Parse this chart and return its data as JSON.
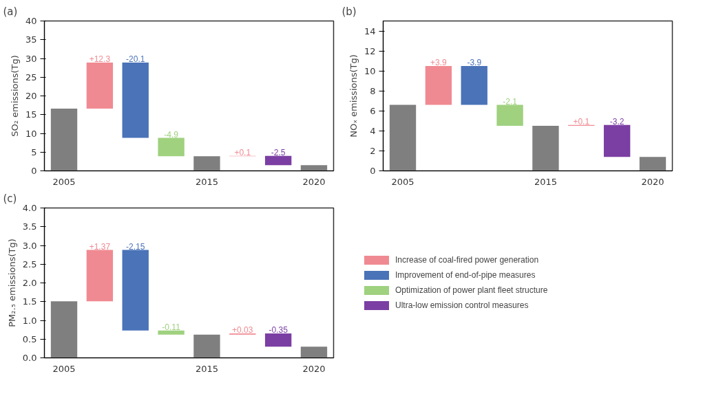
{
  "chart_data": [
    {
      "type": "bar",
      "title": "(a)",
      "ylabel": "SO₂ emissions(Tg)",
      "categories": [
        "2005",
        null,
        null,
        null,
        "2015",
        null,
        null,
        "2020"
      ],
      "ylim": [
        0,
        40
      ],
      "yticks": [
        0,
        5,
        10,
        15,
        20,
        25,
        30,
        35,
        40
      ],
      "grid": false,
      "legend": false,
      "series": [
        {
          "color": "#7f7f7f",
          "values": [
            16.6,
            null,
            null,
            null,
            3.9,
            null,
            null,
            1.5
          ],
          "base": [
            0,
            null,
            null,
            null,
            0,
            null,
            null,
            0
          ]
        },
        {
          "color": "#f08a92",
          "values": [
            null,
            12.3,
            null,
            null,
            null,
            0.1,
            null,
            null
          ],
          "base": [
            null,
            16.6,
            null,
            null,
            null,
            3.9,
            null,
            null
          ],
          "value_labels": [
            null,
            "+12.3",
            null,
            null,
            null,
            "+0.1",
            null,
            null
          ]
        },
        {
          "color": "#4a73b8",
          "values": [
            null,
            null,
            -20.1,
            null,
            null,
            null,
            null,
            null
          ],
          "base": [
            null,
            null,
            28.9,
            null,
            null,
            null,
            null,
            null
          ],
          "value_labels": [
            null,
            null,
            "-20.1",
            null,
            null,
            null,
            null,
            null
          ]
        },
        {
          "color": "#9fd17f",
          "values": [
            null,
            null,
            null,
            -4.9,
            null,
            null,
            null,
            null
          ],
          "base": [
            null,
            null,
            null,
            8.8,
            null,
            null,
            null,
            null
          ],
          "value_labels": [
            null,
            null,
            null,
            "-4.9",
            null,
            null,
            null,
            null
          ]
        },
        {
          "color": "#7b3fa3",
          "values": [
            null,
            null,
            null,
            null,
            null,
            null,
            -2.5,
            null
          ],
          "base": [
            null,
            null,
            null,
            null,
            null,
            null,
            4.0,
            null
          ],
          "value_labels": [
            null,
            null,
            null,
            null,
            null,
            null,
            "-2.5",
            null
          ]
        }
      ]
    },
    {
      "type": "bar",
      "title": "(b)",
      "ylabel": "NOₓ emissions(Tg)",
      "categories": [
        "2005",
        null,
        null,
        null,
        "2015",
        null,
        null,
        "2020"
      ],
      "ylim": [
        0,
        15
      ],
      "yticks": [
        0,
        2,
        4,
        6,
        8,
        10,
        12,
        14
      ],
      "grid": false,
      "legend": false,
      "series": [
        {
          "color": "#7f7f7f",
          "values": [
            6.6,
            null,
            null,
            null,
            4.5,
            null,
            null,
            1.4
          ],
          "base": [
            0,
            null,
            null,
            null,
            0,
            null,
            null,
            0
          ]
        },
        {
          "color": "#f08a92",
          "values": [
            null,
            3.9,
            null,
            null,
            null,
            0.1,
            null,
            null
          ],
          "base": [
            null,
            6.6,
            null,
            null,
            null,
            4.5,
            null,
            null
          ],
          "value_labels": [
            null,
            "+3.9",
            null,
            null,
            null,
            "+0.1",
            null,
            null
          ]
        },
        {
          "color": "#4a73b8",
          "values": [
            null,
            null,
            -3.9,
            null,
            null,
            null,
            null,
            null
          ],
          "base": [
            null,
            null,
            10.5,
            null,
            null,
            null,
            null,
            null
          ],
          "value_labels": [
            null,
            null,
            "-3.9",
            null,
            null,
            null,
            null,
            null
          ]
        },
        {
          "color": "#9fd17f",
          "values": [
            null,
            null,
            null,
            -2.1,
            null,
            null,
            null,
            null
          ],
          "base": [
            null,
            null,
            null,
            6.6,
            null,
            null,
            null,
            null
          ],
          "value_labels": [
            null,
            null,
            null,
            "-2.1",
            null,
            null,
            null,
            null
          ]
        },
        {
          "color": "#7b3fa3",
          "values": [
            null,
            null,
            null,
            null,
            null,
            null,
            -3.2,
            null
          ],
          "base": [
            null,
            null,
            null,
            null,
            null,
            null,
            4.6,
            null
          ],
          "value_labels": [
            null,
            null,
            null,
            null,
            null,
            null,
            "-3.2",
            null
          ]
        }
      ]
    },
    {
      "type": "bar",
      "title": "(c)",
      "ylabel": "PM₂.₅ emissions(Tg)",
      "categories": [
        "2005",
        null,
        null,
        null,
        "2015",
        null,
        null,
        "2020"
      ],
      "ylim": [
        0,
        4
      ],
      "yticks": [
        {
          "value": 0,
          "label": "0.0"
        },
        0.5,
        {
          "value": 1,
          "label": "1.0"
        },
        1.5,
        {
          "value": 2,
          "label": "2.0"
        },
        2.5,
        {
          "value": 3,
          "label": "3.0"
        },
        3.5,
        {
          "value": 4,
          "label": "4.0"
        }
      ],
      "grid": false,
      "legend": "right",
      "series": [
        {
          "color": "#7f7f7f",
          "values": [
            1.51,
            null,
            null,
            null,
            0.62,
            null,
            null,
            0.3
          ],
          "base": [
            0,
            null,
            null,
            null,
            0,
            null,
            null,
            0
          ]
        },
        {
          "name": "Increase of coal-fired power generation",
          "color": "#f08a92",
          "values": [
            null,
            1.37,
            null,
            null,
            null,
            0.03,
            null,
            null
          ],
          "base": [
            null,
            1.51,
            null,
            null,
            null,
            0.62,
            null,
            null
          ],
          "value_labels": [
            null,
            "+1.37",
            null,
            null,
            null,
            "+0.03",
            null,
            null
          ]
        },
        {
          "name": "Improvement of end-of-pipe measures",
          "color": "#4a73b8",
          "values": [
            null,
            null,
            -2.15,
            null,
            null,
            null,
            null,
            null
          ],
          "base": [
            null,
            null,
            2.88,
            null,
            null,
            null,
            null,
            null
          ],
          "value_labels": [
            null,
            null,
            "-2.15",
            null,
            null,
            null,
            null,
            null
          ]
        },
        {
          "name": "Optimization of power plant fleet structure",
          "color": "#9fd17f",
          "values": [
            null,
            null,
            null,
            -0.11,
            null,
            null,
            null,
            null
          ],
          "base": [
            null,
            null,
            null,
            0.73,
            null,
            null,
            null,
            null
          ],
          "value_labels": [
            null,
            null,
            null,
            "-0.11",
            null,
            null,
            null,
            null
          ]
        },
        {
          "name": "Ultra-low emission control measures",
          "color": "#7b3fa3",
          "values": [
            null,
            null,
            null,
            null,
            null,
            null,
            -0.35,
            null
          ],
          "base": [
            null,
            null,
            null,
            null,
            null,
            null,
            0.65,
            null
          ],
          "value_labels": [
            null,
            null,
            null,
            null,
            null,
            null,
            "-0.35",
            null
          ]
        }
      ]
    }
  ]
}
